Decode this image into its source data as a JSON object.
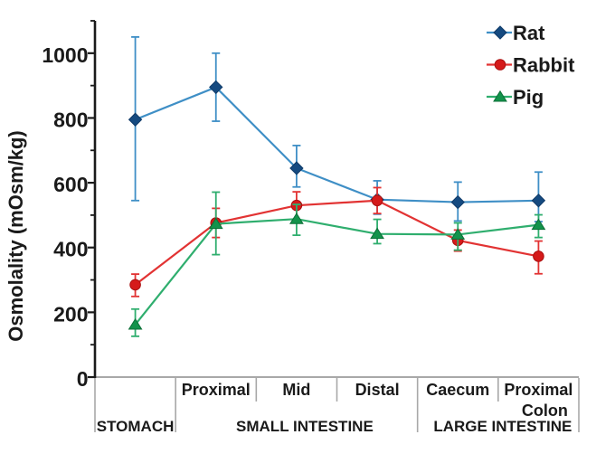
{
  "chart_data": {
    "type": "line",
    "ylabel": "Osmolality  (mOsm/kg)",
    "ylim": [
      0,
      1100
    ],
    "ymajor_ticks": [
      0,
      200,
      400,
      600,
      800,
      1000
    ],
    "yminor_ticks": [
      100,
      300,
      500,
      700,
      900,
      1100
    ],
    "categories": [
      "Stomach",
      "Small intestine Proximal",
      "Small intestine Mid",
      "Small intestine Distal",
      "Caecum",
      "Proximal Colon"
    ],
    "segment_labels": [
      "",
      "Proximal",
      "Mid",
      "Distal",
      "Caecum",
      "Proximal\nColon"
    ],
    "region_labels": [
      {
        "label": "STOMACH",
        "from": 0,
        "to": 1
      },
      {
        "label": "SMALL INTESTINE",
        "from": 1,
        "to": 4
      },
      {
        "label": "LARGE INTESTINE",
        "from": 4,
        "to": 6
      }
    ],
    "series": [
      {
        "name": "Rat",
        "marker": "diamond",
        "line_color": "#3f8fc6",
        "marker_fill": "#154a80",
        "marker_stroke": "#0f3a68",
        "values": [
          795,
          895,
          645,
          548,
          540,
          545
        ],
        "err_up": [
          255,
          105,
          70,
          58,
          62,
          88
        ],
        "err_down": [
          250,
          105,
          58,
          45,
          58,
          65
        ]
      },
      {
        "name": "Rabbit",
        "marker": "circle",
        "line_color": "#e23333",
        "marker_fill": "#d51a1a",
        "marker_stroke": "#a90f0f",
        "values": [
          285,
          476,
          530,
          545,
          422,
          373
        ],
        "err_up": [
          33,
          45,
          42,
          40,
          32,
          47
        ],
        "err_down": [
          36,
          45,
          45,
          40,
          33,
          54
        ]
      },
      {
        "name": "Pig",
        "marker": "triangle",
        "line_color": "#2fae6e",
        "marker_fill": "#13934b",
        "marker_stroke": "#0c6f37",
        "values": [
          162,
          473,
          488,
          442,
          440,
          470
        ],
        "err_up": [
          48,
          98,
          45,
          45,
          36,
          31
        ],
        "err_down": [
          36,
          95,
          50,
          30,
          48,
          39
        ]
      }
    ],
    "legend": [
      "Rat",
      "Rabbit",
      "Pig"
    ],
    "colors": {
      "axis": "#1a1a1a",
      "table_lines": "#a8a8a8",
      "text": "#1a1a1a",
      "background": "#ffffff"
    }
  }
}
